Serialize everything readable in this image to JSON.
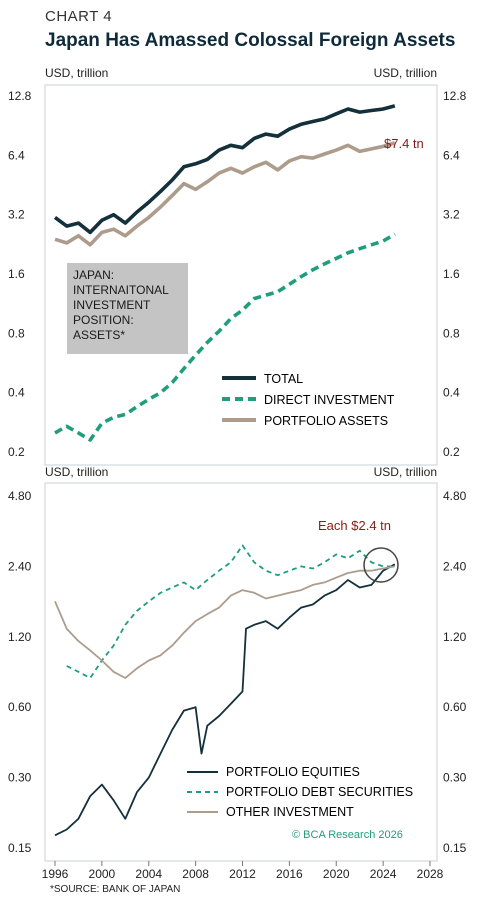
{
  "header": {
    "chart_number": "CHART 4",
    "title": "Japan Has Amassed Colossal Foreign Assets"
  },
  "footer": {
    "source": "*SOURCE: BANK OF JAPAN",
    "copyright": "© BCA Research 2026"
  },
  "colors": {
    "total": "#14303b",
    "direct": "#1f9d7c",
    "portfolio_assets": "#ad9c8c",
    "equities": "#14303b",
    "debt": "#1f9d7c",
    "other": "#ad9c8c",
    "annotation": "#8b1a1a",
    "box": "#c4c4c4"
  },
  "chart_data": [
    {
      "type": "line",
      "scale": "log2",
      "unit_left": "USD, trillion",
      "unit_right": "USD, trillion",
      "yticks": [
        "12.8",
        "6.4",
        "3.2",
        "1.6",
        "0.8",
        "0.4",
        "0.2"
      ],
      "ylim": [
        0.2,
        12.8
      ],
      "xlim": [
        1996,
        2028
      ],
      "annotation": "$7.4 tn",
      "box_label": "JAPAN:\nINTERNAITONAL\nINVESTMENT\nPOSITION:\nASSETS*",
      "series": [
        {
          "name": "TOTAL",
          "style": "solid-thick",
          "x": [
            1996,
            1997,
            1998,
            1999,
            2000,
            2001,
            2002,
            2003,
            2004,
            2005,
            2006,
            2007,
            2008,
            2009,
            2010,
            2011,
            2012,
            2013,
            2014,
            2015,
            2016,
            2017,
            2018,
            2019,
            2020,
            2021,
            2022,
            2023,
            2024,
            2025
          ],
          "y": [
            3.1,
            2.8,
            2.9,
            2.6,
            3.0,
            3.2,
            2.9,
            3.3,
            3.7,
            4.2,
            4.8,
            5.6,
            5.8,
            6.1,
            6.8,
            7.2,
            7.0,
            7.8,
            8.2,
            8.0,
            8.7,
            9.2,
            9.5,
            9.8,
            10.4,
            11.0,
            10.6,
            10.8,
            11.0,
            11.4
          ]
        },
        {
          "name": "DIRECT INVESTMENT",
          "style": "dashed-thick",
          "x": [
            1996,
            1997,
            1998,
            1999,
            2000,
            2001,
            2002,
            2003,
            2004,
            2005,
            2006,
            2007,
            2008,
            2009,
            2010,
            2011,
            2012,
            2013,
            2014,
            2015,
            2016,
            2017,
            2018,
            2019,
            2020,
            2021,
            2022,
            2023,
            2024,
            2025
          ],
          "y": [
            0.25,
            0.27,
            0.25,
            0.23,
            0.28,
            0.3,
            0.31,
            0.34,
            0.37,
            0.4,
            0.45,
            0.53,
            0.62,
            0.72,
            0.82,
            0.95,
            1.05,
            1.2,
            1.25,
            1.3,
            1.42,
            1.55,
            1.68,
            1.8,
            1.92,
            2.05,
            2.15,
            2.25,
            2.35,
            2.55
          ]
        },
        {
          "name": "PORTFOLIO ASSETS",
          "style": "solid-thick",
          "x": [
            1996,
            1997,
            1998,
            1999,
            2000,
            2001,
            2002,
            2003,
            2004,
            2005,
            2006,
            2007,
            2008,
            2009,
            2010,
            2011,
            2012,
            2013,
            2014,
            2015,
            2016,
            2017,
            2018,
            2019,
            2020,
            2021,
            2022,
            2023,
            2024,
            2025
          ],
          "y": [
            2.4,
            2.3,
            2.5,
            2.25,
            2.6,
            2.7,
            2.5,
            2.8,
            3.1,
            3.5,
            4.0,
            4.6,
            4.3,
            4.7,
            5.2,
            5.5,
            5.2,
            5.6,
            5.9,
            5.4,
            6.0,
            6.3,
            6.2,
            6.5,
            6.8,
            7.2,
            6.7,
            6.9,
            7.1,
            7.4
          ]
        }
      ]
    },
    {
      "type": "line",
      "scale": "log2",
      "unit_left": "USD, trillion",
      "unit_right": "USD, trillion",
      "yticks": [
        "4.80",
        "2.40",
        "1.20",
        "0.60",
        "0.30",
        "0.15"
      ],
      "ylim": [
        0.15,
        4.8
      ],
      "xlim": [
        1996,
        2028
      ],
      "xticks": [
        "1996",
        "2000",
        "2004",
        "2008",
        "2012",
        "2016",
        "2020",
        "2024",
        "2028"
      ],
      "annotation": "Each $2.4 tn",
      "series": [
        {
          "name": "PORTFOLIO EQUITIES",
          "style": "solid",
          "x": [
            1996,
            1997,
            1998,
            1999,
            2000,
            2001,
            2002,
            2003,
            2004,
            2005,
            2006,
            2007,
            2008,
            2008.5,
            2009,
            2010,
            2011,
            2012,
            2012.3,
            2013,
            2014,
            2015,
            2016,
            2017,
            2018,
            2019,
            2020,
            2021,
            2022,
            2023,
            2024,
            2025
          ],
          "y": [
            0.17,
            0.18,
            0.2,
            0.25,
            0.28,
            0.24,
            0.2,
            0.26,
            0.3,
            0.38,
            0.48,
            0.58,
            0.6,
            0.38,
            0.5,
            0.55,
            0.62,
            0.7,
            1.3,
            1.35,
            1.4,
            1.3,
            1.45,
            1.6,
            1.65,
            1.8,
            1.9,
            2.1,
            1.95,
            2.0,
            2.3,
            2.45
          ]
        },
        {
          "name": "PORTFOLIO DEBT SECURITIES",
          "style": "dashed",
          "x": [
            1997,
            1998,
            1999,
            2000,
            2001,
            2002,
            2003,
            2004,
            2005,
            2006,
            2007,
            2008,
            2009,
            2010,
            2011,
            2012,
            2013,
            2014,
            2015,
            2016,
            2017,
            2018,
            2019,
            2020,
            2021,
            2022,
            2023,
            2024,
            2025
          ],
          "y": [
            0.9,
            0.85,
            0.8,
            0.95,
            1.1,
            1.35,
            1.55,
            1.7,
            1.85,
            1.95,
            2.05,
            1.9,
            2.1,
            2.3,
            2.5,
            2.95,
            2.5,
            2.3,
            2.2,
            2.3,
            2.4,
            2.35,
            2.5,
            2.7,
            2.6,
            2.8,
            2.5,
            2.4,
            2.4
          ]
        },
        {
          "name": "OTHER INVESTMENT",
          "style": "solid",
          "x": [
            1996,
            1997,
            1998,
            1999,
            2000,
            2001,
            2002,
            2003,
            2004,
            2005,
            2006,
            2007,
            2008,
            2009,
            2010,
            2011,
            2012,
            2013,
            2014,
            2015,
            2016,
            2017,
            2018,
            2019,
            2020,
            2021,
            2022,
            2023,
            2024,
            2025
          ],
          "y": [
            1.7,
            1.3,
            1.15,
            1.05,
            0.95,
            0.85,
            0.8,
            0.88,
            0.95,
            1.0,
            1.1,
            1.25,
            1.4,
            1.5,
            1.6,
            1.8,
            1.9,
            1.85,
            1.75,
            1.8,
            1.85,
            1.9,
            2.0,
            2.05,
            2.15,
            2.25,
            2.3,
            2.3,
            2.35,
            2.4
          ]
        }
      ]
    }
  ]
}
